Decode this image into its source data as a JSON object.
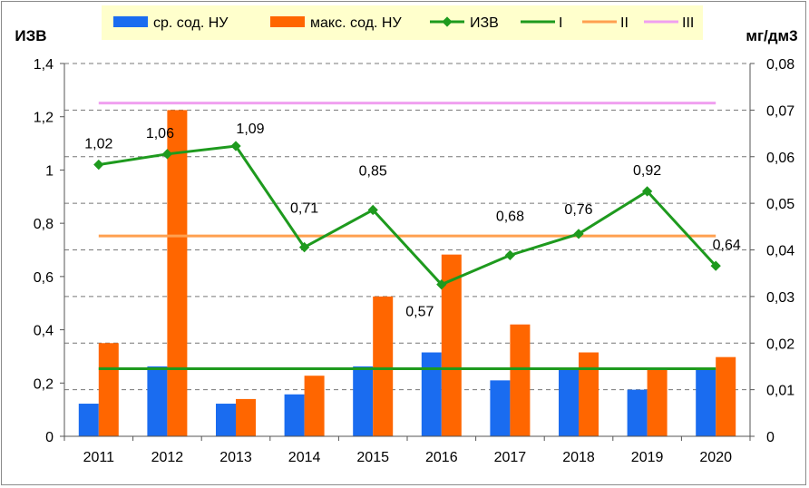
{
  "chart_data": {
    "type": "bar",
    "categories": [
      "2011",
      "2012",
      "2013",
      "2014",
      "2015",
      "2016",
      "2017",
      "2018",
      "2019",
      "2020"
    ],
    "left_axis": {
      "label": "ИЗВ",
      "min": 0,
      "max": 1.4,
      "step": 0.2,
      "ticks": [
        "0",
        "0,2",
        "0,4",
        "0,6",
        "0,8",
        "1",
        "1,2",
        "1,4"
      ]
    },
    "right_axis": {
      "label": "мг/дм3",
      "min": 0,
      "max": 0.08,
      "step": 0.01,
      "ticks": [
        "0",
        "0,01",
        "0,02",
        "0,03",
        "0,04",
        "0,05",
        "0,06",
        "0,07",
        "0,08"
      ]
    },
    "grid": true,
    "legend_position": "top",
    "bar_series": [
      {
        "name": "ср. сод. НУ",
        "color": "#1a6cf0",
        "axis": "right",
        "values": [
          0.007,
          0.015,
          0.007,
          0.009,
          0.015,
          0.018,
          0.012,
          0.0145,
          0.01,
          0.0145
        ]
      },
      {
        "name": "макс. сод. НУ",
        "color": "#ff6600",
        "axis": "right",
        "values": [
          0.02,
          0.07,
          0.008,
          0.013,
          0.03,
          0.039,
          0.024,
          0.018,
          0.0145,
          0.017
        ]
      }
    ],
    "line_series": {
      "name": "ИЗВ",
      "color": "#1e9a1e",
      "axis": "left",
      "values": [
        1.02,
        1.06,
        1.09,
        0.71,
        0.85,
        0.57,
        0.68,
        0.76,
        0.92,
        0.64
      ],
      "labels": [
        "1,02",
        "1,06",
        "1,09",
        "0,71",
        "0,85",
        "0,57",
        "0,68",
        "0,76",
        "0,92",
        "0,64"
      ]
    },
    "reference_lines": [
      {
        "name": "I",
        "color": "#1e9a1e",
        "axis": "right",
        "value": 0.0145
      },
      {
        "name": "II",
        "color": "#ffa050",
        "axis": "right",
        "value": 0.043
      },
      {
        "name": "III",
        "color": "#f0a0f0",
        "axis": "right",
        "value": 0.0715
      }
    ]
  }
}
